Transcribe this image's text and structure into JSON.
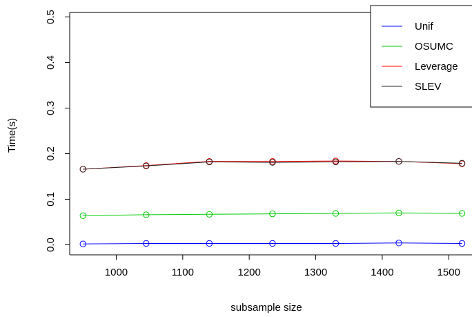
{
  "chart_data": {
    "type": "line",
    "title": "",
    "xlabel": "subsample size",
    "ylabel": "Time(s)",
    "xlim": [
      930,
      1535
    ],
    "ylim": [
      -0.022,
      0.51
    ],
    "x_ticks": [
      1000,
      1100,
      1200,
      1300,
      1400,
      1500
    ],
    "x_tick_labels": [
      "1000",
      "1100",
      "1200",
      "1300",
      "1400",
      "1500"
    ],
    "y_ticks": [
      0.0,
      0.1,
      0.2,
      0.3,
      0.4,
      0.5
    ],
    "y_tick_labels": [
      "0.0",
      "0.1",
      "0.2",
      "0.3",
      "0.4",
      "0.5"
    ],
    "x": [
      950,
      1045,
      1140,
      1235,
      1330,
      1425,
      1520
    ],
    "series": [
      {
        "name": "Unif",
        "color": "#0000ff",
        "values": [
          0.002,
          0.003,
          0.003,
          0.003,
          0.003,
          0.004,
          0.003
        ]
      },
      {
        "name": "OSUMC",
        "color": "#00cc00",
        "values": [
          0.064,
          0.066,
          0.067,
          0.068,
          0.069,
          0.07,
          0.069
        ]
      },
      {
        "name": "Leverage",
        "color": "#ff0000",
        "values": [
          0.166,
          0.174,
          0.183,
          0.183,
          0.184,
          0.183,
          0.178
        ]
      },
      {
        "name": "SLEV",
        "color": "#222222",
        "values": [
          0.166,
          0.173,
          0.182,
          0.181,
          0.182,
          0.183,
          0.179
        ]
      }
    ],
    "legend_position": "top-right",
    "grid": false
  }
}
